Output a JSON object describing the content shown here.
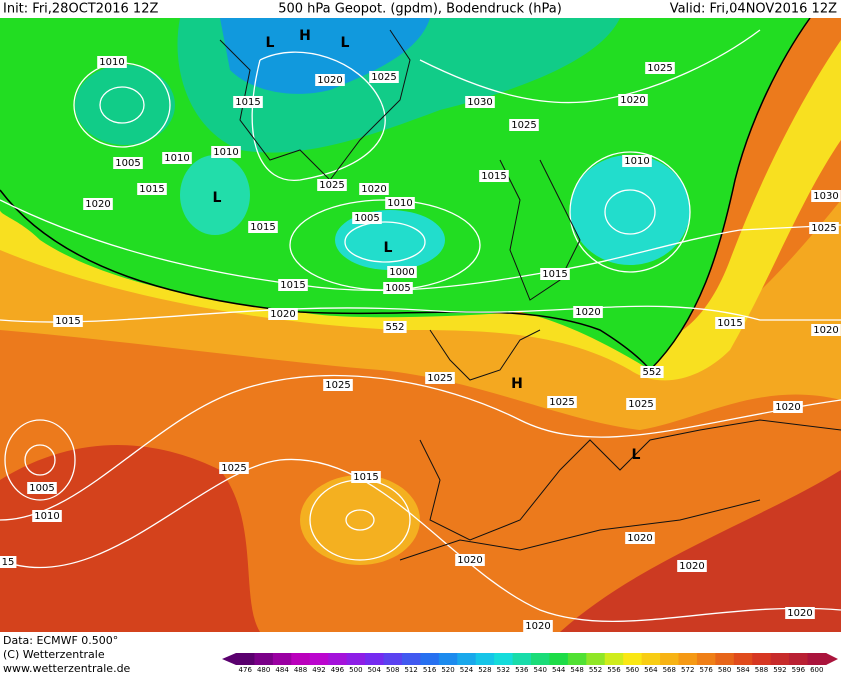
{
  "header": {
    "init": "Init: Fri,28OCT2016 12Z",
    "title": "500 hPa Geopot. (gpdm), Bodendruck (hPa)",
    "valid": "Valid: Fri,04NOV2016 12Z"
  },
  "isobar_labels": [
    "1010",
    "1015",
    "1020",
    "1025",
    "1030",
    "1025",
    "1025",
    "1020",
    "1005",
    "1010",
    "1010",
    "1015",
    "1020",
    "1025",
    "1020",
    "1015",
    "1010",
    "1010",
    "1005",
    "1015",
    "1000",
    "1005",
    "1015",
    "1015",
    "1030",
    "1025",
    "1020",
    "552",
    "1020",
    "1015",
    "1020",
    "1015",
    "552",
    "1025",
    "1025",
    "1025",
    "1025",
    "1020",
    "1025",
    "1005",
    "1010",
    "1015",
    "15",
    "1020",
    "1020",
    "1020",
    "1020",
    "1020"
  ],
  "centers": [
    "L",
    "H",
    "L",
    "L",
    "L",
    "H",
    "L"
  ],
  "footer": {
    "source": "Data: ECMWF  0.500°",
    "copyright": "(C) Wetterzentrale",
    "url": "www.wetterzentrale.de"
  },
  "colorbar": {
    "ticks": [
      476,
      480,
      484,
      488,
      492,
      496,
      500,
      504,
      508,
      512,
      516,
      520,
      524,
      528,
      532,
      536,
      540,
      544,
      548,
      552,
      556,
      560,
      564,
      568,
      572,
      576,
      580,
      584,
      588,
      592,
      596,
      600
    ]
  }
}
